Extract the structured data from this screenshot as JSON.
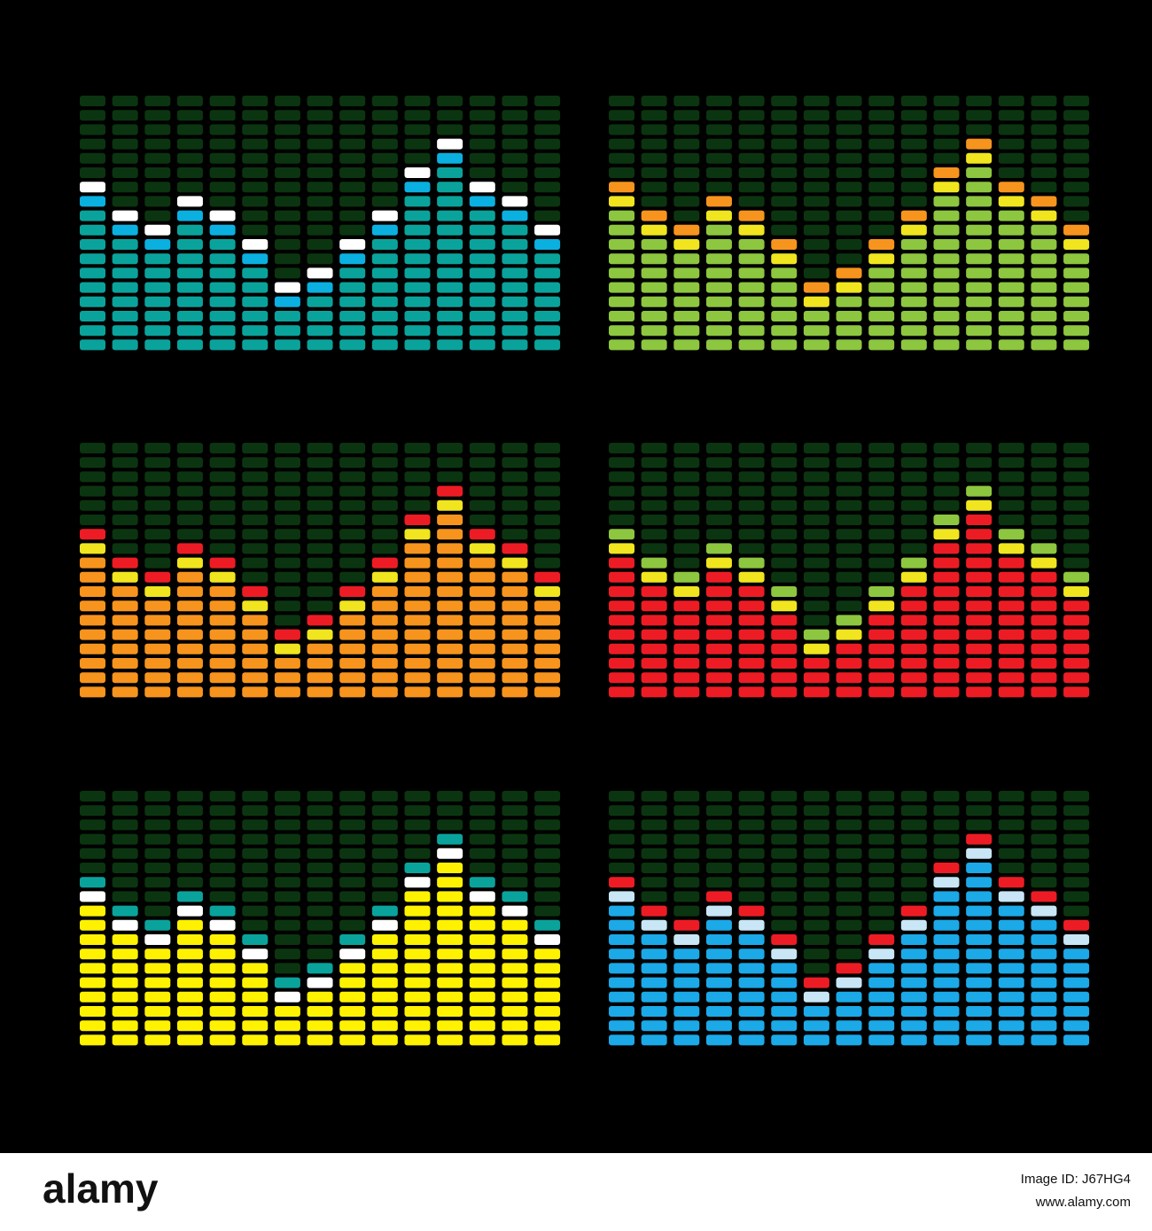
{
  "segments": 18,
  "off_color": "#0b3510",
  "panels": [
    {
      "body": "#0aa39c",
      "second": "#0ab0e0",
      "cap": "#ffffff",
      "levels": [
        12,
        10,
        9,
        11,
        10,
        8,
        5,
        6,
        8,
        10,
        13,
        15,
        12,
        11,
        9
      ]
    },
    {
      "body": "#8dc63f",
      "second": "#f0e51e",
      "cap": "#f7941d",
      "levels": [
        12,
        10,
        9,
        11,
        10,
        8,
        5,
        6,
        8,
        10,
        13,
        15,
        12,
        11,
        9
      ]
    },
    {
      "body": "#f7941d",
      "second": "#f0e51e",
      "cap": "#ed1c24",
      "levels": [
        12,
        10,
        9,
        11,
        10,
        8,
        5,
        6,
        8,
        10,
        13,
        15,
        12,
        11,
        9
      ]
    },
    {
      "body": "#ed1c24",
      "second": "#f0e51e",
      "cap": "#8dc63f",
      "levels": [
        12,
        10,
        9,
        11,
        10,
        8,
        5,
        6,
        8,
        10,
        13,
        15,
        12,
        11,
        9
      ]
    },
    {
      "body": "#fff200",
      "second": "#ffffff",
      "cap": "#0aa39c",
      "levels": [
        12,
        10,
        9,
        11,
        10,
        8,
        5,
        6,
        8,
        10,
        13,
        15,
        12,
        11,
        9
      ]
    },
    {
      "body": "#1ba9e8",
      "second": "#c8e6f5",
      "cap": "#ed1c24",
      "levels": [
        12,
        10,
        9,
        11,
        10,
        8,
        5,
        6,
        8,
        10,
        13,
        15,
        12,
        11,
        9
      ]
    }
  ],
  "footer": {
    "logo": "alamy",
    "image_id": "Image ID: J67HG4",
    "url": "www.alamy.com"
  }
}
